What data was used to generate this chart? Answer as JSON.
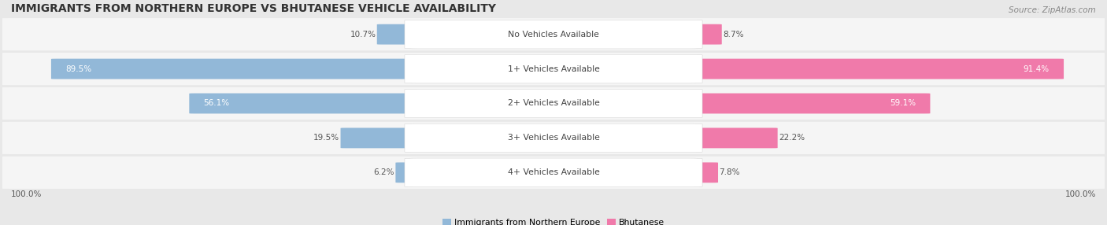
{
  "title": "IMMIGRANTS FROM NORTHERN EUROPE VS BHUTANESE VEHICLE AVAILABILITY",
  "source": "Source: ZipAtlas.com",
  "categories": [
    "No Vehicles Available",
    "1+ Vehicles Available",
    "2+ Vehicles Available",
    "3+ Vehicles Available",
    "4+ Vehicles Available"
  ],
  "left_values": [
    10.7,
    89.5,
    56.1,
    19.5,
    6.2
  ],
  "right_values": [
    8.7,
    91.4,
    59.1,
    22.2,
    7.8
  ],
  "left_color": "#92b8d8",
  "right_color": "#f07aaa",
  "left_label": "Immigrants from Northern Europe",
  "right_label": "Bhutanese",
  "bar_max": 100.0,
  "bg_color": "#e8e8e8",
  "row_bg_color": "#f5f5f5",
  "title_color": "#333333",
  "source_color": "#888888",
  "value_color": "#555555",
  "cat_label_color": "#444444",
  "axis_label_left": "100.0%",
  "axis_label_right": "100.0%",
  "figsize": [
    14.06,
    2.86
  ],
  "dpi": 100
}
